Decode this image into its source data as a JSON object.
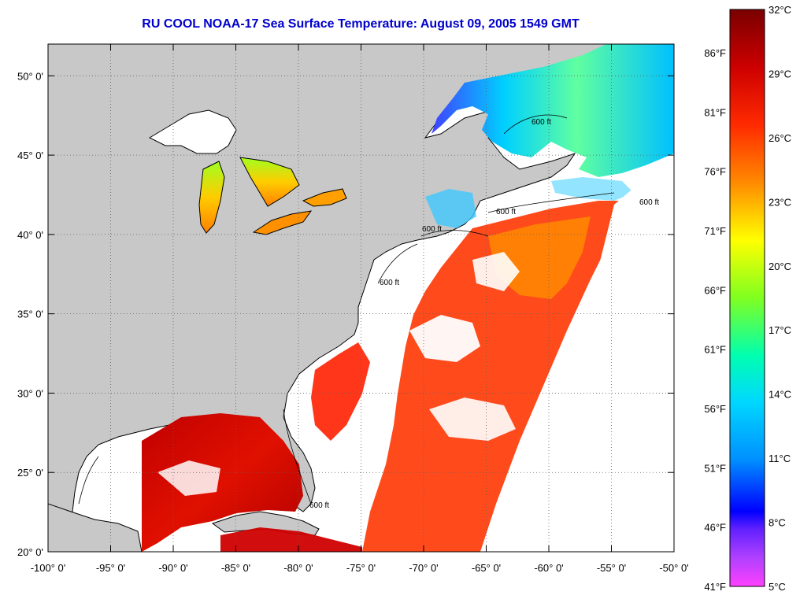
{
  "title": "RU COOL  NOAA-17  Sea Surface Temperature:  August 09, 2005 1549 GMT",
  "map": {
    "lon_range": [
      -100,
      -50
    ],
    "lat_range": [
      20,
      52
    ],
    "lon_ticks": [
      "-100° 0'",
      "-95° 0'",
      "-90° 0'",
      "-85° 0'",
      "-80° 0'",
      "-75° 0'",
      "-70° 0'",
      "-65° 0'",
      "-60° 0'",
      "-55° 0'",
      "-50° 0'"
    ],
    "lat_ticks": [
      "20° 0'",
      "25° 0'",
      "30° 0'",
      "35° 0'",
      "40° 0'",
      "45° 0'",
      "50° 0'"
    ],
    "contour_labels": [
      "600 ft",
      "600 ft",
      "600 ft",
      "600 ft",
      "600 ft",
      "600 ft"
    ],
    "colors": {
      "land": "#c8c8c8",
      "cloud": "#ffffff",
      "grid": "#606060"
    }
  },
  "legend": {
    "celsius": [
      "32°C",
      "29°C",
      "26°C",
      "23°C",
      "20°C",
      "17°C",
      "14°C",
      "11°C",
      "8°C",
      "5°C"
    ],
    "fahrenheit": [
      "86°F",
      "81°F",
      "76°F",
      "71°F",
      "66°F",
      "61°F",
      "56°F",
      "51°F",
      "46°F",
      "41°F"
    ],
    "gradient": [
      "#7a0000",
      "#cc0000",
      "#ff2a00",
      "#ff8a00",
      "#ffff00",
      "#80ff20",
      "#00ffb0",
      "#00d8ff",
      "#0090ff",
      "#0000ff",
      "#6020ff",
      "#b040ff",
      "#ff40ff"
    ]
  }
}
